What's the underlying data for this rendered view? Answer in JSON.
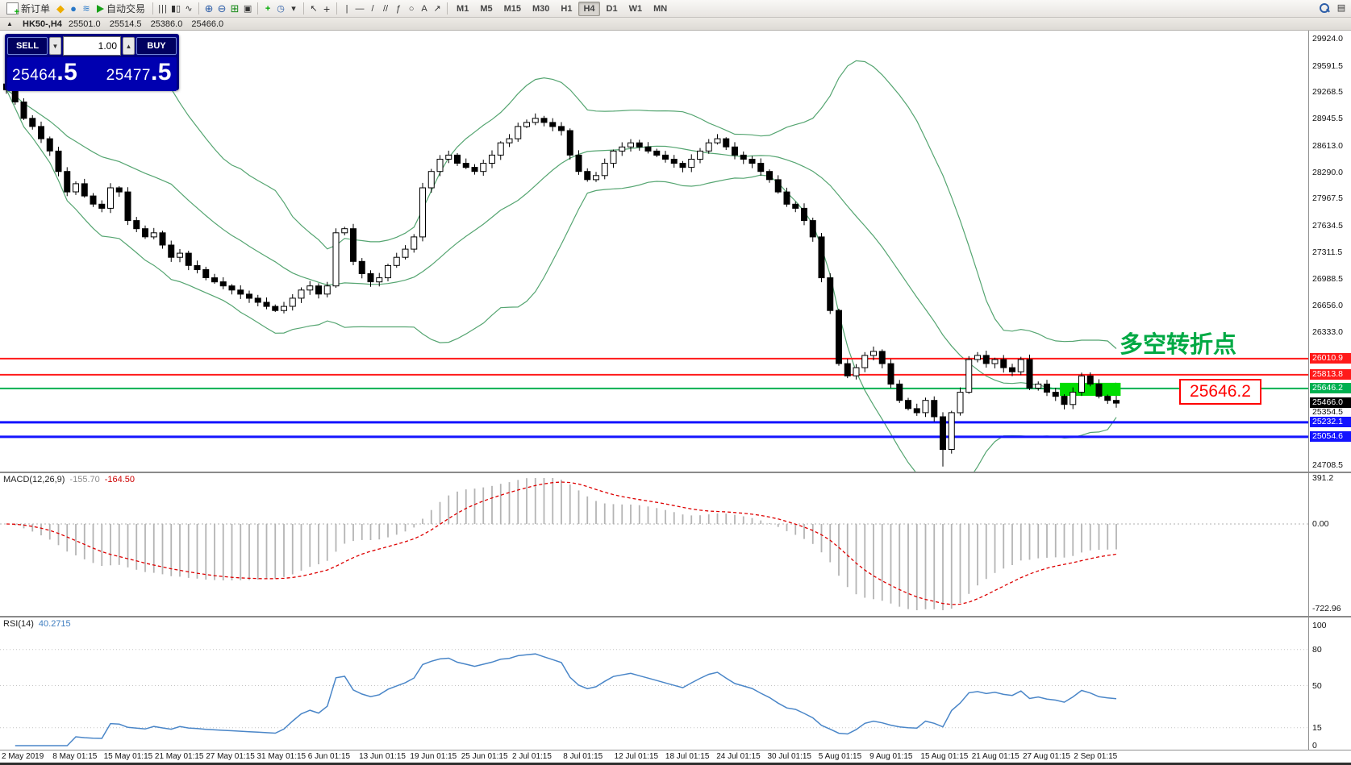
{
  "toolbar": {
    "new_order": "新订单",
    "autotrading": "自动交易",
    "timeframes": [
      "M1",
      "M5",
      "M15",
      "M30",
      "H1",
      "H4",
      "D1",
      "W1",
      "MN"
    ],
    "active_timeframe": "H4"
  },
  "chart_header": {
    "symbol": "HK50-,H4",
    "open": "25501.0",
    "high": "25514.5",
    "low": "25386.0",
    "close": "25466.0"
  },
  "trade_panel": {
    "sell_label": "SELL",
    "buy_label": "BUY",
    "volume": "1.00",
    "sell_price": {
      "main": "25464",
      "big": ".5"
    },
    "buy_price": {
      "main": "25477",
      "big": ".5"
    }
  },
  "annotations": {
    "turning_point": {
      "text": "多空转折点",
      "color": "#00a944"
    },
    "price_callout": {
      "text": "25646.2",
      "color": "#ff0000"
    }
  },
  "macd_header": {
    "name": "MACD(12,26,9)",
    "macd_value": "-155.70",
    "signal_value": "-164.50"
  },
  "rsi_header": {
    "name": "RSI(14)",
    "value": "40.2715"
  },
  "time_axis": [
    "2 May 2019",
    "8 May 01:15",
    "15 May 01:15",
    "21 May 01:15",
    "27 May 01:15",
    "31 May 01:15",
    "6 Jun 01:15",
    "13 Jun 01:15",
    "19 Jun 01:15",
    "25 Jun 01:15",
    "2 Jul 01:15",
    "8 Jul 01:15",
    "12 Jul 01:15",
    "18 Jul 01:15",
    "24 Jul 01:15",
    "30 Jul 01:15",
    "5 Aug 01:15",
    "9 Aug 01:15",
    "15 Aug 01:15",
    "21 Aug 01:15",
    "27 Aug 01:15",
    "2 Sep 01:15"
  ],
  "chart_data": {
    "type": "candlestick",
    "symbol": "HK50-,H4",
    "scale": {
      "top": 29924.0,
      "bottom": 24708.5
    },
    "closes": [
      29300,
      29150,
      28950,
      28850,
      28700,
      28550,
      28300,
      28050,
      28150,
      28000,
      27900,
      27850,
      28100,
      28050,
      27700,
      27600,
      27500,
      27550,
      27400,
      27250,
      27300,
      27150,
      27100,
      27000,
      26950,
      26900,
      26850,
      26800,
      26750,
      26700,
      26650,
      26600,
      26650,
      26750,
      26850,
      26900,
      26800,
      26900,
      27550,
      27600,
      27200,
      27050,
      26950,
      27000,
      27150,
      27250,
      27350,
      27500,
      28100,
      28300,
      28450,
      28500,
      28400,
      28350,
      28300,
      28400,
      28500,
      28650,
      28700,
      28850,
      28900,
      28950,
      28900,
      28850,
      28800,
      28500,
      28300,
      28200,
      28250,
      28400,
      28550,
      28600,
      28650,
      28600,
      28550,
      28500,
      28450,
      28400,
      28350,
      28450,
      28550,
      28650,
      28700,
      28600,
      28500,
      28450,
      28400,
      28300,
      28200,
      28050,
      27900,
      27850,
      27700,
      27500,
      27000,
      26600,
      25950,
      25800,
      25900,
      26050,
      26100,
      25950,
      25700,
      25500,
      25400,
      25350,
      25500,
      25300,
      24900,
      25350,
      25600,
      26000,
      26050,
      25950,
      26000,
      25900,
      25850,
      26000,
      25650,
      25700,
      25600,
      25550,
      25450,
      25600,
      25800,
      25700,
      25550,
      25500,
      25466
    ],
    "bollinger": {
      "period": 20,
      "deviation": 2
    },
    "colors": {
      "bollinger": "#55a571",
      "macd_histogram": "#b4b4b4",
      "macd_signal": "#dd0000",
      "rsi_line": "#4a86c8",
      "bull": "#ffffff",
      "bear": "#000000"
    },
    "hlines": [
      {
        "price": 26010.9,
        "label": "26010.9",
        "color": "#ff1a1a",
        "width": 2
      },
      {
        "price": 25813.8,
        "label": "25813.8",
        "color": "#ff1a1a",
        "width": 2
      },
      {
        "price": 25646.2,
        "label": "25646.2",
        "color": "#00b050",
        "width": 2
      },
      {
        "price": 25232.1,
        "label": "25232.1",
        "color": "#1414ff",
        "width": 3
      },
      {
        "price": 25054.6,
        "label": "25054.6",
        "color": "#1414ff",
        "width": 3
      }
    ],
    "current_price": 25466.0,
    "current_price_label": "25466.0",
    "green_rect": {
      "from_bar": 121.5,
      "to_bar": 128.5,
      "price_top": 25715,
      "price_bottom": 25555,
      "color": "#00dd00"
    },
    "price_axis_labels": [
      "29924.0",
      "29591.5",
      "29268.5",
      "28945.5",
      "28613.0",
      "28290.0",
      "27967.5",
      "27634.5",
      "27311.5",
      "26988.5",
      "26656.0",
      "26333.0",
      "25354.5",
      "24708.5"
    ],
    "macd": {
      "fast": 12,
      "slow": 26,
      "signal": 9,
      "axis_labels": [
        "391.2",
        "0.00",
        "-722.96"
      ],
      "scale_max": 391.2,
      "scale_min": -722.96
    },
    "rsi": {
      "period": 14,
      "axis_labels": [
        "100",
        "80",
        "50",
        "15",
        "0"
      ],
      "levels": [
        80,
        50,
        15
      ]
    }
  }
}
